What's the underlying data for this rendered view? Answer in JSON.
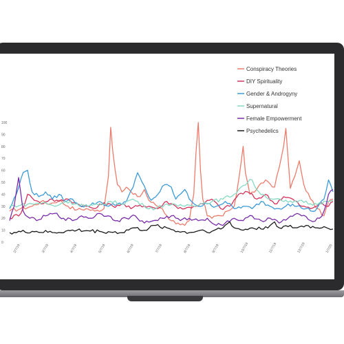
{
  "chart_data": {
    "type": "line",
    "title": "",
    "xlabel": "",
    "ylabel": "",
    "ylim": [
      0,
      100
    ],
    "x_tick_labels": [
      "2/7/19",
      "3/7/19",
      "4/7/19",
      "5/7/19",
      "6/7/19",
      "7/7/19",
      "8/7/19",
      "9/7/19",
      "10/7/19",
      "11/7/19",
      "12/7/19",
      "1/7/20"
    ],
    "y_tick_labels": [
      "0",
      "10",
      "20",
      "30",
      "40",
      "50",
      "60",
      "70",
      "80",
      "90",
      "100"
    ],
    "legend_position": "top-right",
    "grid": false,
    "n_points": 145,
    "series": [
      {
        "name": "Conspiracy Theories",
        "color": "#ec7b6b",
        "anchors": [
          [
            0,
            26
          ],
          [
            5,
            28
          ],
          [
            10,
            30
          ],
          [
            14,
            34
          ],
          [
            18,
            32
          ],
          [
            22,
            35
          ],
          [
            26,
            30
          ],
          [
            30,
            27
          ],
          [
            34,
            28
          ],
          [
            38,
            26
          ],
          [
            42,
            28
          ],
          [
            44,
            55
          ],
          [
            45,
            96
          ],
          [
            46,
            75
          ],
          [
            48,
            48
          ],
          [
            50,
            42
          ],
          [
            52,
            46
          ],
          [
            55,
            40
          ],
          [
            58,
            38
          ],
          [
            60,
            44
          ],
          [
            62,
            35
          ],
          [
            65,
            31
          ],
          [
            68,
            28
          ],
          [
            70,
            22
          ],
          [
            72,
            18
          ],
          [
            75,
            16
          ],
          [
            78,
            14
          ],
          [
            80,
            18
          ],
          [
            82,
            40
          ],
          [
            83,
            75
          ],
          [
            84,
            100
          ],
          [
            85,
            60
          ],
          [
            86,
            36
          ],
          [
            88,
            22
          ],
          [
            90,
            20
          ],
          [
            92,
            22
          ],
          [
            95,
            22
          ],
          [
            97,
            26
          ],
          [
            100,
            30
          ],
          [
            102,
            52
          ],
          [
            104,
            80
          ],
          [
            105,
            58
          ],
          [
            107,
            40
          ],
          [
            110,
            44
          ],
          [
            114,
            52
          ],
          [
            118,
            46
          ],
          [
            120,
            62
          ],
          [
            122,
            80
          ],
          [
            123,
            95
          ],
          [
            124,
            70
          ],
          [
            125,
            45
          ],
          [
            127,
            55
          ],
          [
            129,
            68
          ],
          [
            131,
            48
          ],
          [
            134,
            36
          ],
          [
            137,
            28
          ],
          [
            140,
            22
          ],
          [
            142,
            34
          ],
          [
            144,
            36
          ]
        ]
      },
      {
        "name": "DIY Spirituality",
        "color": "#d4325b",
        "anchors": [
          [
            0,
            20
          ],
          [
            5,
            24
          ],
          [
            8,
            40
          ],
          [
            10,
            37
          ],
          [
            14,
            32
          ],
          [
            18,
            36
          ],
          [
            22,
            34
          ],
          [
            26,
            36
          ],
          [
            30,
            32
          ],
          [
            34,
            30
          ],
          [
            38,
            28
          ],
          [
            42,
            33
          ],
          [
            46,
            30
          ],
          [
            50,
            32
          ],
          [
            54,
            28
          ],
          [
            58,
            31
          ],
          [
            62,
            30
          ],
          [
            66,
            28
          ],
          [
            70,
            34
          ],
          [
            74,
            30
          ],
          [
            78,
            28
          ],
          [
            82,
            30
          ],
          [
            86,
            32
          ],
          [
            90,
            36
          ],
          [
            94,
            28
          ],
          [
            98,
            30
          ],
          [
            102,
            40
          ],
          [
            106,
            42
          ],
          [
            110,
            36
          ],
          [
            114,
            40
          ],
          [
            118,
            32
          ],
          [
            122,
            38
          ],
          [
            126,
            36
          ],
          [
            130,
            30
          ],
          [
            134,
            28
          ],
          [
            138,
            32
          ],
          [
            142,
            30
          ],
          [
            144,
            34
          ]
        ]
      },
      {
        "name": "Gender & Androgyny",
        "color": "#3b9ad9",
        "anchors": [
          [
            0,
            28
          ],
          [
            3,
            40
          ],
          [
            6,
            58
          ],
          [
            8,
            60
          ],
          [
            10,
            42
          ],
          [
            13,
            38
          ],
          [
            16,
            42
          ],
          [
            19,
            36
          ],
          [
            22,
            40
          ],
          [
            25,
            34
          ],
          [
            28,
            36
          ],
          [
            32,
            30
          ],
          [
            36,
            31
          ],
          [
            40,
            34
          ],
          [
            44,
            30
          ],
          [
            48,
            32
          ],
          [
            52,
            34
          ],
          [
            55,
            46
          ],
          [
            57,
            58
          ],
          [
            59,
            50
          ],
          [
            61,
            42
          ],
          [
            63,
            35
          ],
          [
            66,
            40
          ],
          [
            69,
            48
          ],
          [
            72,
            46
          ],
          [
            74,
            36
          ],
          [
            76,
            40
          ],
          [
            78,
            44
          ],
          [
            80,
            36
          ],
          [
            84,
            30
          ],
          [
            88,
            32
          ],
          [
            92,
            30
          ],
          [
            96,
            34
          ],
          [
            100,
            28
          ],
          [
            104,
            30
          ],
          [
            108,
            28
          ],
          [
            112,
            34
          ],
          [
            116,
            30
          ],
          [
            120,
            28
          ],
          [
            124,
            32
          ],
          [
            128,
            30
          ],
          [
            132,
            28
          ],
          [
            136,
            26
          ],
          [
            140,
            36
          ],
          [
            142,
            52
          ],
          [
            144,
            42
          ]
        ]
      },
      {
        "name": "Supernatural",
        "color": "#86d9c2",
        "anchors": [
          [
            0,
            30
          ],
          [
            5,
            31
          ],
          [
            10,
            32
          ],
          [
            15,
            33
          ],
          [
            20,
            30
          ],
          [
            25,
            34
          ],
          [
            30,
            32
          ],
          [
            35,
            30
          ],
          [
            40,
            31
          ],
          [
            45,
            34
          ],
          [
            50,
            32
          ],
          [
            55,
            36
          ],
          [
            60,
            30
          ],
          [
            65,
            28
          ],
          [
            70,
            32
          ],
          [
            75,
            30
          ],
          [
            80,
            31
          ],
          [
            85,
            32
          ],
          [
            90,
            34
          ],
          [
            95,
            36
          ],
          [
            100,
            40
          ],
          [
            103,
            46
          ],
          [
            106,
            50
          ],
          [
            108,
            52
          ],
          [
            110,
            44
          ],
          [
            114,
            38
          ],
          [
            118,
            36
          ],
          [
            122,
            34
          ],
          [
            126,
            33
          ],
          [
            130,
            35
          ],
          [
            134,
            32
          ],
          [
            138,
            33
          ],
          [
            142,
            34
          ],
          [
            144,
            35
          ]
        ]
      },
      {
        "name": "Female Empowerment",
        "color": "#7a2ca8",
        "anchors": [
          [
            0,
            18
          ],
          [
            2,
            30
          ],
          [
            4,
            54
          ],
          [
            6,
            26
          ],
          [
            9,
            20
          ],
          [
            12,
            18
          ],
          [
            16,
            22
          ],
          [
            20,
            24
          ],
          [
            24,
            20
          ],
          [
            28,
            18
          ],
          [
            32,
            22
          ],
          [
            36,
            20
          ],
          [
            40,
            24
          ],
          [
            44,
            22
          ],
          [
            48,
            18
          ],
          [
            52,
            20
          ],
          [
            56,
            22
          ],
          [
            60,
            16
          ],
          [
            64,
            18
          ],
          [
            68,
            20
          ],
          [
            72,
            22
          ],
          [
            76,
            18
          ],
          [
            80,
            20
          ],
          [
            84,
            18
          ],
          [
            88,
            20
          ],
          [
            92,
            14
          ],
          [
            96,
            16
          ],
          [
            100,
            20
          ],
          [
            104,
            18
          ],
          [
            108,
            22
          ],
          [
            112,
            18
          ],
          [
            116,
            20
          ],
          [
            120,
            16
          ],
          [
            124,
            20
          ],
          [
            128,
            24
          ],
          [
            130,
            22
          ],
          [
            134,
            18
          ],
          [
            138,
            20
          ],
          [
            140,
            26
          ],
          [
            142,
            40
          ],
          [
            144,
            44
          ]
        ]
      },
      {
        "name": "Psychedelics",
        "color": "#1a1a1a",
        "anchors": [
          [
            0,
            8
          ],
          [
            10,
            9
          ],
          [
            20,
            8
          ],
          [
            30,
            10
          ],
          [
            40,
            9
          ],
          [
            50,
            8
          ],
          [
            55,
            12
          ],
          [
            60,
            10
          ],
          [
            65,
            14
          ],
          [
            70,
            12
          ],
          [
            75,
            9
          ],
          [
            80,
            8
          ],
          [
            85,
            10
          ],
          [
            90,
            9
          ],
          [
            95,
            12
          ],
          [
            98,
            17
          ],
          [
            100,
            12
          ],
          [
            104,
            10
          ],
          [
            108,
            12
          ],
          [
            112,
            11
          ],
          [
            116,
            14
          ],
          [
            118,
            17
          ],
          [
            120,
            12
          ],
          [
            124,
            13
          ],
          [
            128,
            12
          ],
          [
            132,
            14
          ],
          [
            136,
            12
          ],
          [
            140,
            13
          ],
          [
            144,
            11
          ]
        ]
      }
    ]
  }
}
